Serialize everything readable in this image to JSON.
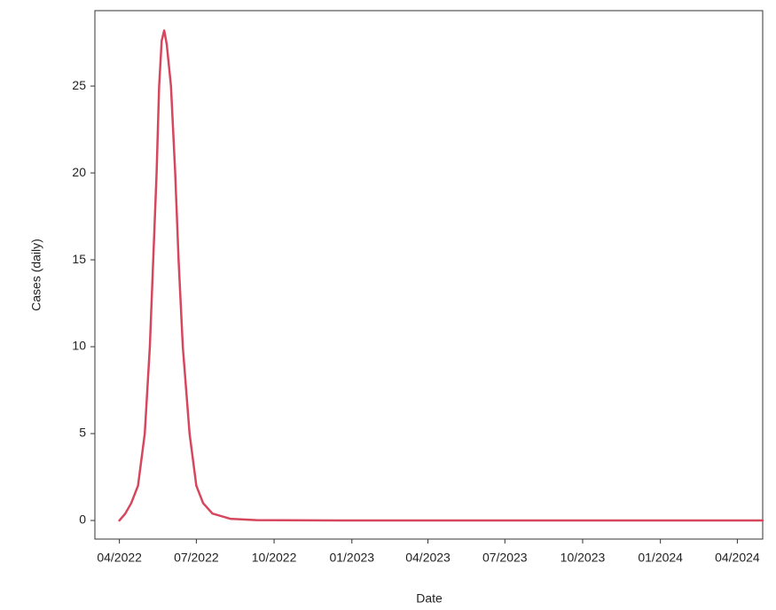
{
  "chart_data": {
    "type": "line",
    "xlabel": "Date",
    "ylabel": "Cases (daily)",
    "x": [
      "2022-04-01",
      "2022-04-08",
      "2022-04-15",
      "2022-04-23",
      "2022-05-01",
      "2022-05-07",
      "2022-05-11",
      "2022-05-15",
      "2022-05-18",
      "2022-05-21",
      "2022-05-24",
      "2022-05-27",
      "2022-06-01",
      "2022-06-06",
      "2022-06-10",
      "2022-06-15",
      "2022-06-23",
      "2022-07-01",
      "2022-07-09",
      "2022-07-20",
      "2022-08-10",
      "2022-09-10",
      "2023-01-01",
      "2024-05-01"
    ],
    "series": [
      {
        "name": "Cases (daily)",
        "color": "#d6475e",
        "values": [
          0,
          0.4,
          1.0,
          2,
          5,
          10,
          15,
          20,
          25,
          27.6,
          28.2,
          27.4,
          25,
          20,
          15,
          10,
          5,
          2,
          1,
          0.4,
          0.1,
          0.02,
          0,
          0
        ]
      }
    ],
    "xlim": [
      "2022-03-03",
      "2024-05-01"
    ],
    "xticks": [
      {
        "value": "2022-04-01",
        "label": "04/2022"
      },
      {
        "value": "2022-07-01",
        "label": "07/2022"
      },
      {
        "value": "2022-10-01",
        "label": "10/2022"
      },
      {
        "value": "2023-01-01",
        "label": "01/2023"
      },
      {
        "value": "2023-04-01",
        "label": "04/2023"
      },
      {
        "value": "2023-07-01",
        "label": "07/2023"
      },
      {
        "value": "2023-10-01",
        "label": "10/2023"
      },
      {
        "value": "2024-01-01",
        "label": "01/2024"
      },
      {
        "value": "2024-04-01",
        "label": "04/2024"
      }
    ],
    "ylim": [
      -1.07,
      29.34
    ],
    "yticks": [
      0,
      5,
      10,
      15,
      20,
      25
    ]
  }
}
